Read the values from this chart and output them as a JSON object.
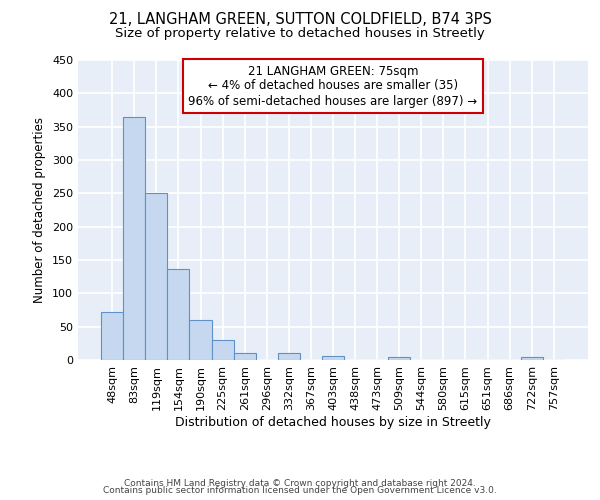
{
  "title1": "21, LANGHAM GREEN, SUTTON COLDFIELD, B74 3PS",
  "title2": "Size of property relative to detached houses in Streetly",
  "xlabel": "Distribution of detached houses by size in Streetly",
  "ylabel": "Number of detached properties",
  "categories": [
    "48sqm",
    "83sqm",
    "119sqm",
    "154sqm",
    "190sqm",
    "225sqm",
    "261sqm",
    "296sqm",
    "332sqm",
    "367sqm",
    "403sqm",
    "438sqm",
    "473sqm",
    "509sqm",
    "544sqm",
    "580sqm",
    "615sqm",
    "651sqm",
    "686sqm",
    "722sqm",
    "757sqm"
  ],
  "values": [
    72,
    365,
    251,
    136,
    60,
    30,
    10,
    0,
    10,
    0,
    6,
    0,
    0,
    5,
    0,
    0,
    0,
    0,
    0,
    5,
    0
  ],
  "bar_color": "#c5d8f0",
  "bar_edge_color": "#6090c8",
  "background_color": "#e8eef8",
  "grid_color": "#ffffff",
  "annotation_text": "21 LANGHAM GREEN: 75sqm\n← 4% of detached houses are smaller (35)\n96% of semi-detached houses are larger (897) →",
  "annotation_box_color": "white",
  "annotation_box_edge_color": "#cc0000",
  "ylim": [
    0,
    450
  ],
  "yticks": [
    0,
    50,
    100,
    150,
    200,
    250,
    300,
    350,
    400,
    450
  ],
  "footer1": "Contains HM Land Registry data © Crown copyright and database right 2024.",
  "footer2": "Contains public sector information licensed under the Open Government Licence v3.0.",
  "title1_fontsize": 10.5,
  "title2_fontsize": 9.5,
  "xlabel_fontsize": 9,
  "ylabel_fontsize": 8.5,
  "tick_fontsize": 8,
  "annotation_fontsize": 8.5,
  "footer_fontsize": 6.5
}
